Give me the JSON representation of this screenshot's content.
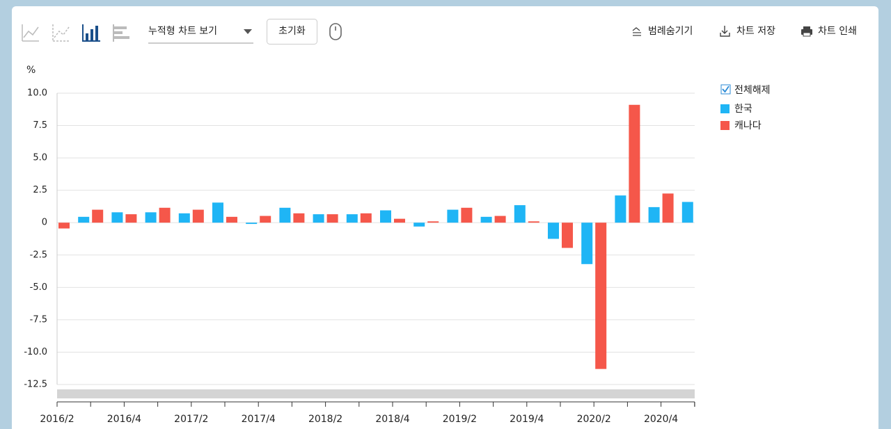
{
  "toolbar": {
    "view_select": "누적형 차트 보기",
    "reset": "초기화",
    "hide_legend": "범례숨기기",
    "save": "차트 저장",
    "print": "차트 인쇄"
  },
  "chart_data": {
    "type": "bar",
    "y_unit": "%",
    "legend_toggle": "전체해제",
    "categories": [
      "2016/2",
      null,
      "2016/4",
      null,
      "2017/2",
      null,
      "2017/4",
      null,
      "2018/2",
      null,
      "2018/4",
      null,
      "2019/2",
      null,
      "2019/4",
      null,
      "2020/2",
      null,
      "2020/4",
      null
    ],
    "series": [
      {
        "name": "한국",
        "color": "#1fb5f5",
        "values": [
          null,
          0.45,
          0.8,
          0.8,
          0.72,
          1.55,
          -0.1,
          1.15,
          0.65,
          0.65,
          0.95,
          -0.3,
          1.0,
          0.45,
          1.35,
          -1.25,
          -3.2,
          2.1,
          1.2,
          1.6
        ]
      },
      {
        "name": "캐나다",
        "color": "#f5574a",
        "values": [
          -0.45,
          1.0,
          0.65,
          1.15,
          1.0,
          0.45,
          0.52,
          0.72,
          0.65,
          0.72,
          0.3,
          0.1,
          1.15,
          0.52,
          0.1,
          -1.95,
          -11.3,
          9.1,
          2.25,
          null
        ]
      }
    ],
    "ylim": [
      -12.5,
      10
    ],
    "yticks": [
      {
        "value": 10,
        "label": "10.0"
      },
      7.5,
      {
        "value": 5,
        "label": "5.0"
      },
      2.5,
      0,
      -2.5,
      {
        "value": -5,
        "label": "-5.0"
      },
      -7.5,
      {
        "value": -10,
        "label": "-10.0"
      },
      -12.5
    ],
    "grid": true
  }
}
